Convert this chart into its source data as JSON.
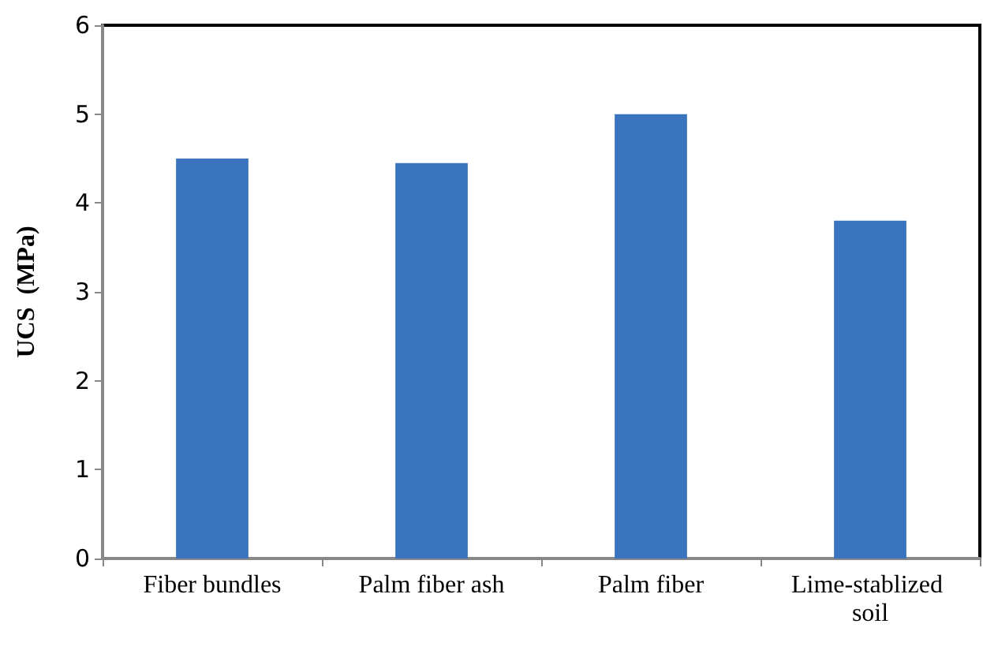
{
  "chart_data": {
    "type": "bar",
    "ylabel": "UCS  (MPa)",
    "categories": [
      "Fiber bundles",
      "Palm fiber ash",
      "Palm fiber",
      "Lime-stablized soil"
    ],
    "values": [
      4.5,
      4.45,
      5,
      3.8
    ],
    "color": "#3a74be",
    "ylim": [
      0,
      6
    ],
    "yticks": [
      0,
      1,
      2,
      3,
      4,
      5,
      6
    ],
    "grid": false
  }
}
